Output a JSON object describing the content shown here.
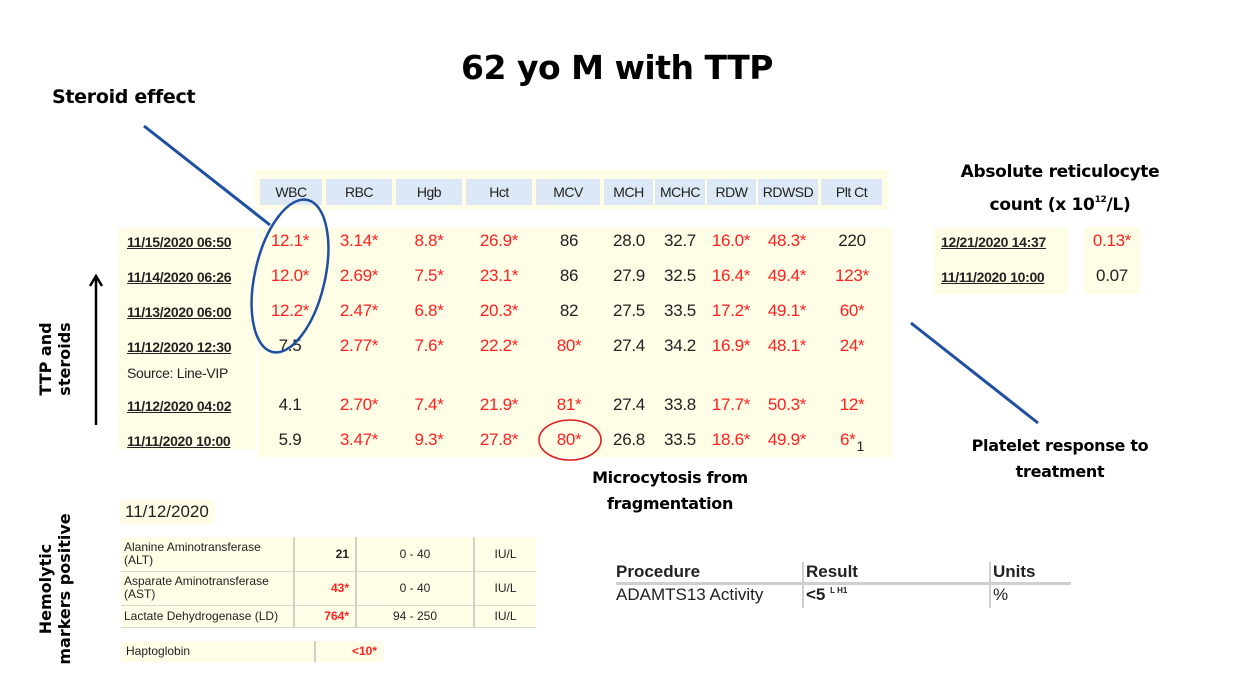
{
  "title": "62 yo M with TTP",
  "annotations": {
    "steroid_effect": "Steroid effect",
    "retic_title_line1": "Absolute reticulocyte",
    "retic_title_line2_pre": "count (x 10",
    "retic_title_exp": "12",
    "retic_title_line2_post": "/L)",
    "platelet_line1": "Platelet response to",
    "platelet_line2": "treatment",
    "micro_line1": "Microcytosis from",
    "micro_line2": "fragmentation",
    "ttp_line1": "TTP and",
    "ttp_line2": "steroids",
    "hemo_line1": "Hemolytic",
    "hemo_line2": "markers positive"
  },
  "cbc": {
    "columns": [
      "WBC",
      "RBC",
      "Hgb",
      "Hct",
      "MCV",
      "MCH",
      "MCHC",
      "RDW",
      "RDWSD",
      "Plt Ct"
    ],
    "source_note": "Source: Line-VIP",
    "rows": [
      {
        "date": "11/15/2020 06:50",
        "values": [
          "12.1*",
          "3.14*",
          "8.8*",
          "26.9*",
          "86",
          "28.0",
          "32.7",
          "16.0*",
          "48.3*",
          "220"
        ]
      },
      {
        "date": "11/14/2020 06:26",
        "values": [
          "12.0*",
          "2.69*",
          "7.5*",
          "23.1*",
          "86",
          "27.9",
          "32.5",
          "16.4*",
          "49.4*",
          "123*"
        ]
      },
      {
        "date": "11/13/2020 06:00",
        "values": [
          "12.2*",
          "2.47*",
          "6.8*",
          "20.3*",
          "82",
          "27.5",
          "33.5",
          "17.2*",
          "49.1*",
          "60*"
        ]
      },
      {
        "date": "11/12/2020 12:30",
        "values": [
          "7.5",
          "2.77*",
          "7.6*",
          "22.2*",
          "80*",
          "27.4",
          "34.2",
          "16.9*",
          "48.1*",
          "24*"
        ]
      },
      {
        "date": "11/12/2020 04:02",
        "values": [
          "4.1",
          "2.70*",
          "7.4*",
          "21.9*",
          "81*",
          "27.4",
          "33.8",
          "17.7*",
          "50.3*",
          "12*"
        ]
      },
      {
        "date": "11/11/2020 10:00",
        "values": [
          "5.9",
          "3.47*",
          "9.3*",
          "27.8*",
          "80*",
          "26.8",
          "33.5",
          "18.6*",
          "49.9*",
          "6*"
        ],
        "plt_footnote": "1"
      }
    ]
  },
  "retic": {
    "rows": [
      {
        "date": "12/21/2020 14:37",
        "value": "0.13*"
      },
      {
        "date": "11/11/2020 10:00",
        "value": "0.07"
      }
    ]
  },
  "chemistry": {
    "date": "11/12/2020",
    "rows": [
      {
        "name_line1": "Alanine Aminotransferase",
        "name_line2": "(ALT)",
        "result": "21",
        "range": "0 - 40",
        "units": "IU/L"
      },
      {
        "name_line1": "Asparate Aminotransferase",
        "name_line2": "(AST)",
        "result": "43*",
        "range": "0 - 40",
        "units": "IU/L"
      },
      {
        "name_line1": "Lactate Dehydrogenase (LD)",
        "name_line2": "",
        "result": "764*",
        "range": "94 - 250",
        "units": "IU/L"
      }
    ],
    "haptoglobin": {
      "name": "Haptoglobin",
      "result": "<10*"
    }
  },
  "procedure": {
    "headers": {
      "procedure": "Procedure",
      "result": "Result",
      "units": "Units"
    },
    "row": {
      "procedure": "ADAMTS13 Activity",
      "result": "<5",
      "flags": "L H1",
      "units": "%"
    }
  },
  "colors": {
    "abnormal": "#ff2020",
    "normal": "#222222",
    "row_bg": "#fffde6",
    "header_bg": "#dce8f5",
    "annotation_blue": "#1f4fa0",
    "annotation_red": "#e02020"
  }
}
